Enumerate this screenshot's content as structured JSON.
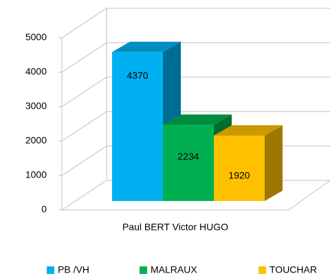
{
  "chart_data": {
    "type": "bar3d",
    "categories": [
      "Paul BERT Victor HUGO"
    ],
    "series": [
      {
        "name": "PB /VH",
        "color": "#00b0f0",
        "values": [
          4370
        ]
      },
      {
        "name": "MALRAUX",
        "color": "#00b050",
        "values": [
          2234
        ]
      },
      {
        "name": "TOUCHAR",
        "color": "#ffc000",
        "values": [
          1920
        ]
      }
    ],
    "ylim": [
      0,
      5000
    ],
    "yticks": [
      0,
      1000,
      2000,
      3000,
      4000,
      5000
    ],
    "grid": true,
    "legend": "bottom"
  }
}
